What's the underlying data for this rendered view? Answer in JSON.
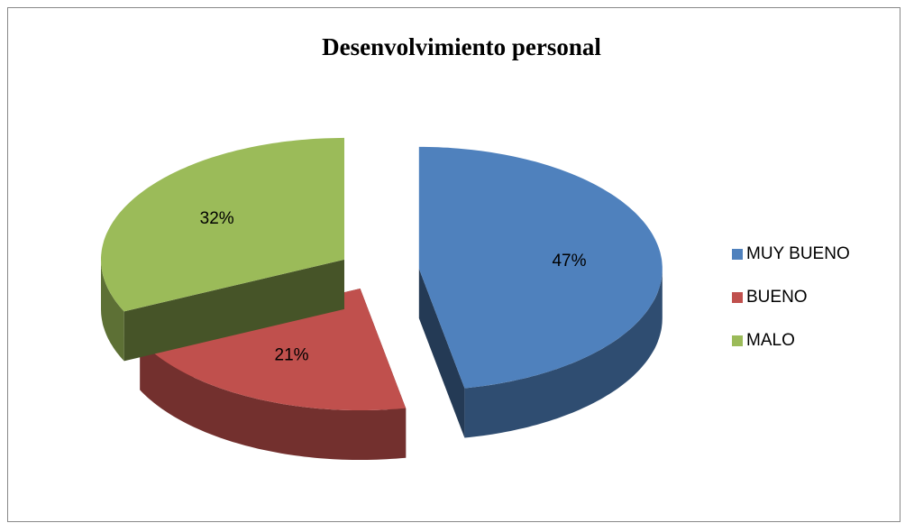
{
  "chart_data": {
    "type": "pie",
    "title": "Desenvolvimiento personal",
    "categories": [
      "MUY BUENO",
      "BUENO",
      "MALO"
    ],
    "values": [
      47,
      21,
      32
    ],
    "value_labels": [
      "47%",
      "21%",
      "32%"
    ],
    "colors": [
      "#4f81bd",
      "#c0504d",
      "#9bbb59"
    ],
    "legend": "right"
  }
}
